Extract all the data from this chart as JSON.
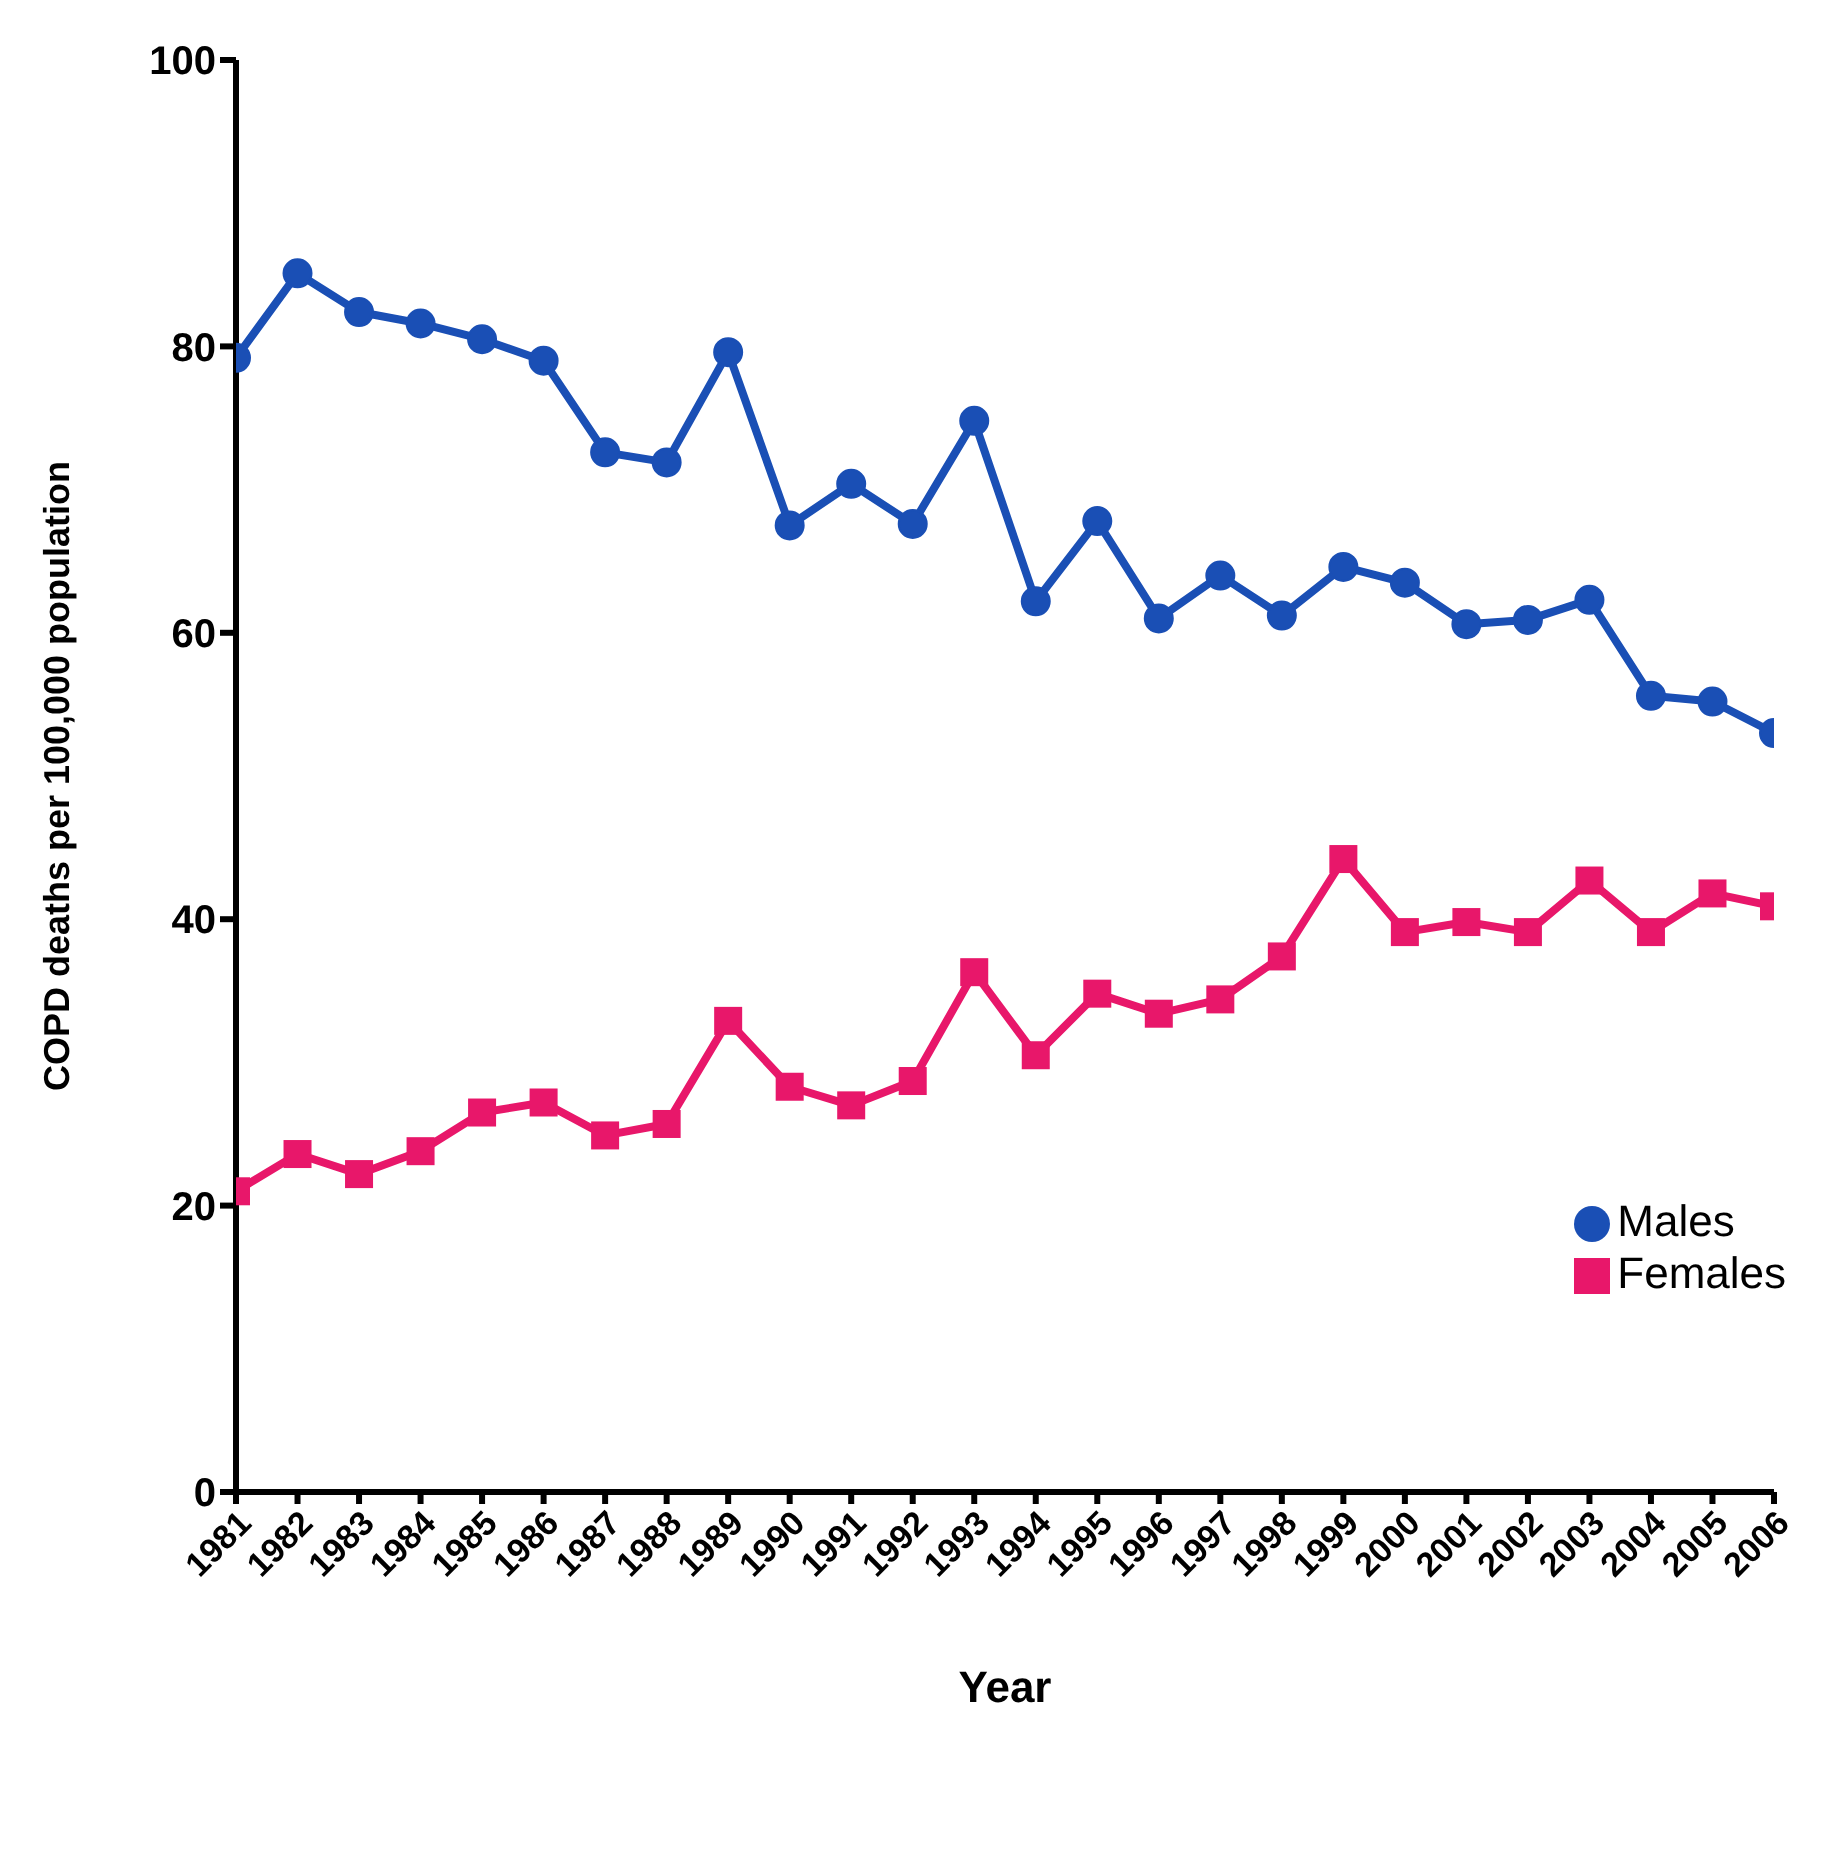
{
  "chart_data": {
    "type": "line",
    "xlabel": "Year",
    "ylabel": "COPD deaths per 100,000 population",
    "categories": [
      "1981",
      "1982",
      "1983",
      "1984",
      "1985",
      "1986",
      "1987",
      "1988",
      "1989",
      "1990",
      "1991",
      "1992",
      "1993",
      "1994",
      "1995",
      "1996",
      "1997",
      "1998",
      "1999",
      "2000",
      "2001",
      "2002",
      "2003",
      "2004",
      "2005",
      "2006"
    ],
    "series": [
      {
        "name": "Males",
        "color": "#1a4fb5",
        "marker": "circle",
        "values": [
          79.2,
          85.1,
          82.4,
          81.6,
          80.5,
          79.0,
          72.6,
          71.9,
          79.6,
          67.5,
          70.4,
          67.6,
          74.8,
          62.2,
          67.8,
          61.0,
          64.0,
          61.2,
          64.6,
          63.5,
          60.6,
          60.9,
          62.3,
          55.6,
          55.2,
          53.0
        ]
      },
      {
        "name": "Females",
        "color": "#e8176a",
        "marker": "square",
        "values": [
          21.0,
          23.6,
          22.2,
          23.8,
          26.5,
          27.2,
          24.9,
          25.7,
          32.9,
          28.3,
          27.0,
          28.7,
          36.3,
          30.5,
          34.8,
          33.4,
          34.4,
          37.4,
          44.2,
          39.1,
          39.8,
          39.1,
          42.7,
          39.1,
          41.8,
          40.9
        ]
      }
    ],
    "ylim": [
      0,
      100
    ],
    "yticks": [
      0,
      20,
      40,
      60,
      80,
      100
    ],
    "grid": false,
    "legend": "bottom right",
    "line_style": "solid"
  }
}
